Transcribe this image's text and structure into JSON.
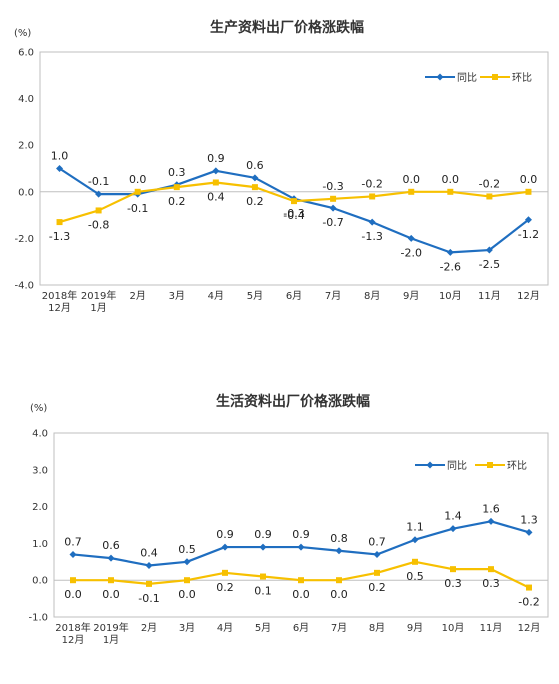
{
  "colors": {
    "yoy": "#1f6ec0",
    "mom": "#f7c000",
    "axis": "#bfbfbf",
    "text": "#333333"
  },
  "chart_data": [
    {
      "type": "line",
      "title": "生产资料出厂价格涨跌幅",
      "unit": "(%)",
      "categories": [
        [
          "2018年",
          "12月"
        ],
        [
          "2019年",
          "1月"
        ],
        [
          "2月"
        ],
        [
          "3月"
        ],
        [
          "4月"
        ],
        [
          "5月"
        ],
        [
          "6月"
        ],
        [
          "7月"
        ],
        [
          "8月"
        ],
        [
          "9月"
        ],
        [
          "10月"
        ],
        [
          "11月"
        ],
        [
          "12月"
        ]
      ],
      "ylim": [
        -4.0,
        6.0
      ],
      "yticks": [
        -4.0,
        -2.0,
        0.0,
        2.0,
        4.0,
        6.0
      ],
      "ytick_labels": [
        "-4.0",
        "-2.0",
        "0.0",
        "2.0",
        "4.0",
        "6.0"
      ],
      "legend_position": "top-right",
      "series": [
        {
          "name": "同比",
          "color": "#1f6ec0",
          "marker": "diamond",
          "values": [
            1.0,
            -0.1,
            -0.1,
            0.3,
            0.9,
            0.6,
            -0.3,
            -0.7,
            -1.3,
            -2.0,
            -2.6,
            -2.5,
            -1.2
          ],
          "labels": [
            "1.0",
            "-0.1",
            "-0.1",
            "0.3",
            "0.9",
            "0.6",
            "-0.3",
            "-0.7",
            "-1.3",
            "-2.0",
            "-2.6",
            "-2.5",
            "-1.2"
          ]
        },
        {
          "name": "环比",
          "color": "#f7c000",
          "marker": "square",
          "values": [
            -1.3,
            -0.8,
            0.0,
            0.2,
            0.4,
            0.2,
            -0.4,
            -0.3,
            -0.2,
            0.0,
            0.0,
            -0.2,
            0.0
          ],
          "labels": [
            "-1.3",
            "-0.8",
            "0.0",
            "0.2",
            "0.4",
            "0.2",
            "-0.4",
            "-0.3",
            "-0.2",
            "0.0",
            "0.0",
            "-0.2",
            "0.0"
          ]
        }
      ]
    },
    {
      "type": "line",
      "title": "生活资料出厂价格涨跌幅",
      "unit": "(%)",
      "categories": [
        [
          "2018年",
          "12月"
        ],
        [
          "2019年",
          "1月"
        ],
        [
          "2月"
        ],
        [
          "3月"
        ],
        [
          "4月"
        ],
        [
          "5月"
        ],
        [
          "6月"
        ],
        [
          "7月"
        ],
        [
          "8月"
        ],
        [
          "9月"
        ],
        [
          "10月"
        ],
        [
          "11月"
        ],
        [
          "12月"
        ]
      ],
      "ylim": [
        -1.0,
        4.0
      ],
      "yticks": [
        -1.0,
        0.0,
        1.0,
        2.0,
        3.0,
        4.0
      ],
      "ytick_labels": [
        "-1.0",
        "0.0",
        "1.0",
        "2.0",
        "3.0",
        "4.0"
      ],
      "legend_position": "top-right",
      "series": [
        {
          "name": "同比",
          "color": "#1f6ec0",
          "marker": "diamond",
          "values": [
            0.7,
            0.6,
            0.4,
            0.5,
            0.9,
            0.9,
            0.9,
            0.8,
            0.7,
            1.1,
            1.4,
            1.6,
            1.3
          ],
          "labels": [
            "0.7",
            "0.6",
            "0.4",
            "0.5",
            "0.9",
            "0.9",
            "0.9",
            "0.8",
            "0.7",
            "1.1",
            "1.4",
            "1.6",
            "1.3"
          ]
        },
        {
          "name": "环比",
          "color": "#f7c000",
          "marker": "square",
          "values": [
            0.0,
            0.0,
            -0.1,
            0.0,
            0.2,
            0.1,
            0.0,
            0.0,
            0.2,
            0.5,
            0.3,
            0.3,
            -0.2
          ],
          "labels": [
            "0.0",
            "0.0",
            "-0.1",
            "0.0",
            "0.2",
            "0.1",
            "0.0",
            "0.0",
            "0.2",
            "0.5",
            "0.3",
            "0.3",
            "-0.2"
          ]
        }
      ]
    }
  ]
}
